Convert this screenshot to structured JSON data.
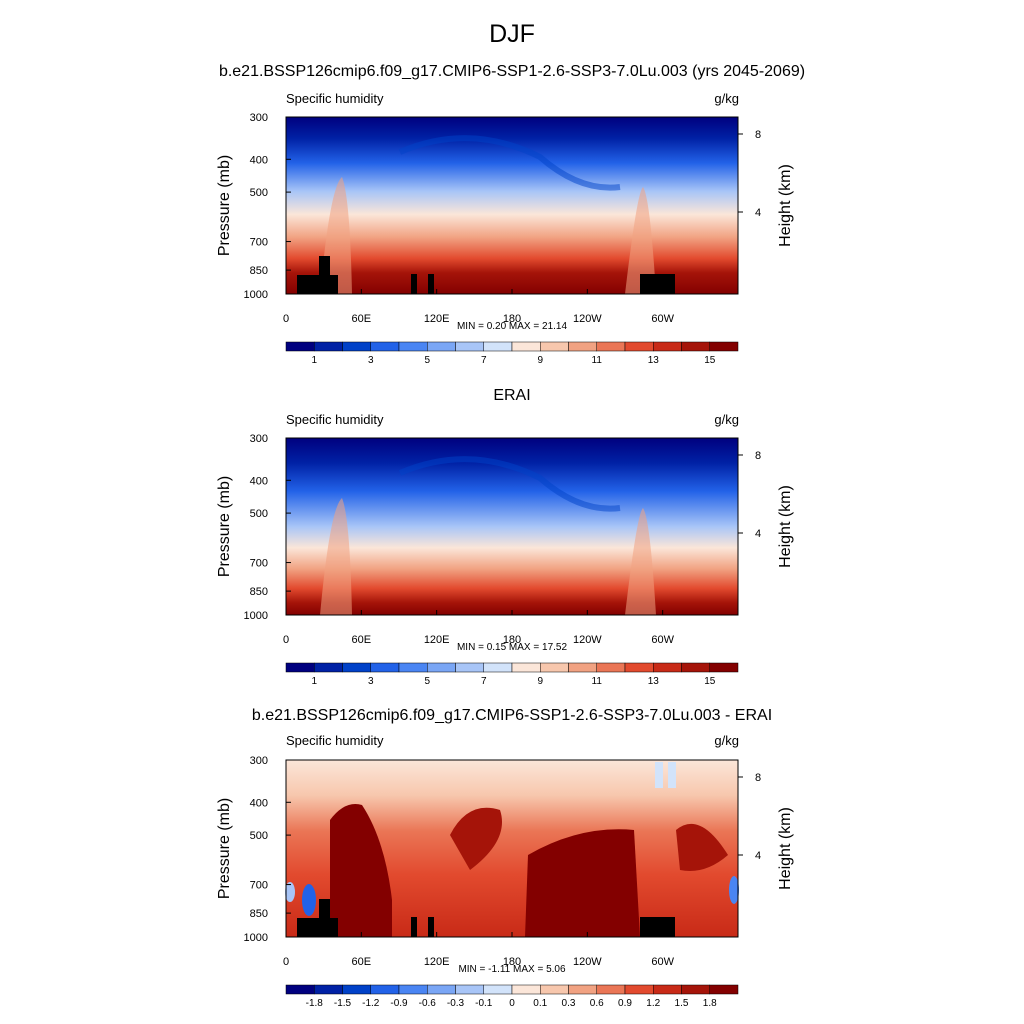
{
  "title": "DJF",
  "panels": [
    {
      "id": "model",
      "title": "b.e21.BSSP126cmip6.f09_g17.CMIP6-SSP1-2.6-SSP3-7.0Lu.003 (yrs 2045-2069)",
      "left_label": "Specific humidity",
      "right_label": "g/kg",
      "stats": "MIN =   0.20  MAX =  21.14",
      "colorbar": "abs"
    },
    {
      "id": "obs",
      "title": "ERAI",
      "left_label": "Specific humidity",
      "right_label": "g/kg",
      "stats": "MIN =   0.15  MAX =  17.52",
      "colorbar": "abs"
    },
    {
      "id": "diff",
      "title": "b.e21.BSSP126cmip6.f09_g17.CMIP6-SSP1-2.6-SSP3-7.0Lu.003 - ERAI",
      "left_label": "Specific humidity",
      "right_label": "g/kg",
      "stats": "MIN =  -1.11  MAX =   5.06",
      "colorbar": "diff"
    }
  ],
  "chart_data": [
    {
      "type": "heatmap",
      "title": "b.e21.BSSP126cmip6.f09_g17.CMIP6-SSP1-2.6-SSP3-7.0Lu.003 (yrs 2045-2069)",
      "xlabel": "",
      "ylabel": "Pressure (mb)",
      "y2label": "Height (km)",
      "x_ticks": [
        "0",
        "60E",
        "120E",
        "180",
        "120W",
        "60W"
      ],
      "x_tick_lons": [
        0,
        60,
        120,
        180,
        240,
        300
      ],
      "xlim": [
        0,
        360
      ],
      "y_ticks": [
        300,
        400,
        500,
        700,
        850,
        1000
      ],
      "ylim": [
        1000,
        300
      ],
      "y_scale": "log",
      "y2_ticks": [
        4,
        8
      ],
      "units": "g/kg",
      "min": 0.2,
      "max": 21.14
    },
    {
      "type": "heatmap",
      "title": "ERAI",
      "xlabel": "",
      "ylabel": "Pressure (mb)",
      "y2label": "Height (km)",
      "x_ticks": [
        "0",
        "60E",
        "120E",
        "180",
        "120W",
        "60W"
      ],
      "x_tick_lons": [
        0,
        60,
        120,
        180,
        240,
        300
      ],
      "xlim": [
        0,
        360
      ],
      "y_ticks": [
        300,
        400,
        500,
        700,
        850,
        1000
      ],
      "ylim": [
        1000,
        300
      ],
      "y_scale": "log",
      "y2_ticks": [
        4,
        8
      ],
      "units": "g/kg",
      "min": 0.15,
      "max": 17.52
    },
    {
      "type": "heatmap",
      "title": "b.e21.BSSP126cmip6.f09_g17.CMIP6-SSP1-2.6-SSP3-7.0Lu.003 - ERAI",
      "xlabel": "",
      "ylabel": "Pressure (mb)",
      "y2label": "Height (km)",
      "x_ticks": [
        "0",
        "60E",
        "120E",
        "180",
        "120W",
        "60W"
      ],
      "x_tick_lons": [
        0,
        60,
        120,
        180,
        240,
        300
      ],
      "xlim": [
        0,
        360
      ],
      "y_ticks": [
        300,
        400,
        500,
        700,
        850,
        1000
      ],
      "ylim": [
        1000,
        300
      ],
      "y_scale": "log",
      "y2_ticks": [
        4,
        8
      ],
      "units": "g/kg",
      "min": -1.11,
      "max": 5.06
    }
  ],
  "colorbars": {
    "abs": {
      "colors": [
        "#00007f",
        "#0021a5",
        "#0041c8",
        "#2262e8",
        "#4a85f3",
        "#7aa6f5",
        "#a8c5f7",
        "#d2e3fa",
        "#fbe6d9",
        "#f7c7ad",
        "#f1a282",
        "#ea7656",
        "#e24a2e",
        "#c82a17",
        "#a51409",
        "#830000"
      ],
      "labels": [
        "1",
        "3",
        "5",
        "7",
        "9",
        "11",
        "13",
        "15"
      ]
    },
    "diff": {
      "colors": [
        "#00007f",
        "#0021a5",
        "#0041c8",
        "#2262e8",
        "#4a85f3",
        "#7aa6f5",
        "#a8c5f7",
        "#d2e3fa",
        "#fbe6d9",
        "#f7c7ad",
        "#f1a282",
        "#ea7656",
        "#e24a2e",
        "#c82a17",
        "#a51409",
        "#830000"
      ],
      "labels": [
        "-1.8",
        "-1.5",
        "-1.2",
        "-0.9",
        "-0.6",
        "-0.3",
        "-0.1",
        "0",
        "0.1",
        "0.3",
        "0.6",
        "0.9",
        "1.2",
        "1.5",
        "1.8"
      ]
    }
  }
}
